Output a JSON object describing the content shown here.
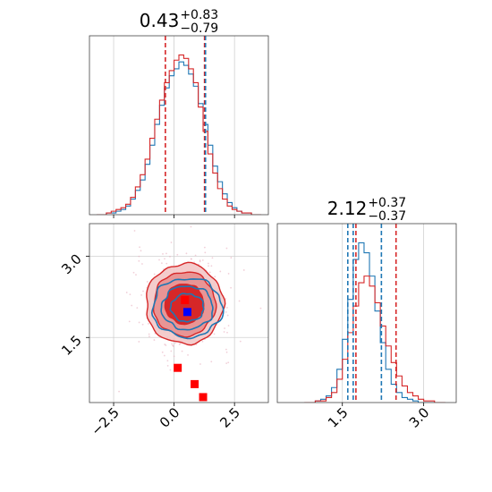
{
  "chart_data": [
    {
      "type": "histogram",
      "panel": "marginal-x",
      "title": {
        "value": "0.43",
        "plus": "+0.83",
        "minus": "−0.79"
      },
      "xlim": [
        -3.5,
        3.9
      ],
      "grid": true,
      "quantile_lines": [
        {
          "color": "#d62728",
          "values": [
            -0.36,
            1.26
          ]
        },
        {
          "color": "#1f77b4",
          "values": [
            1.3
          ]
        }
      ],
      "bins_x": [
        -3.1,
        -2.9,
        -2.7,
        -2.5,
        -2.3,
        -2.1,
        -1.9,
        -1.7,
        -1.5,
        -1.3,
        -1.1,
        -0.9,
        -0.7,
        -0.5,
        -0.3,
        -0.1,
        0.1,
        0.3,
        0.5,
        0.7,
        0.9,
        1.1,
        1.3,
        1.5,
        1.7,
        1.9,
        2.1,
        2.3,
        2.5,
        2.7,
        2.9,
        3.1,
        3.3,
        3.5
      ],
      "series": [
        {
          "color": "#1f77b4",
          "values": [
            0,
            0,
            1,
            1,
            2,
            3,
            5,
            9,
            14,
            20,
            29,
            40,
            52,
            63,
            73,
            80,
            84,
            88,
            86,
            81,
            74,
            64,
            52,
            40,
            28,
            19,
            12,
            7,
            4,
            2,
            1,
            1,
            0,
            0
          ]
        },
        {
          "color": "#d62728",
          "values": [
            0,
            0,
            1,
            2,
            3,
            4,
            6,
            10,
            16,
            23,
            32,
            44,
            55,
            66,
            76,
            83,
            89,
            92,
            90,
            84,
            76,
            62,
            48,
            35,
            24,
            15,
            9,
            5,
            3,
            2,
            1,
            1,
            0,
            0
          ]
        }
      ]
    },
    {
      "type": "contour",
      "panel": "joint",
      "xlim": [
        -3.5,
        3.9
      ],
      "ylim": [
        0.3,
        3.6
      ],
      "grid": true,
      "distributions": [
        {
          "color": "#d62728",
          "center": [
            0.43,
            2.12
          ],
          "sigma": [
            0.8,
            0.37
          ]
        },
        {
          "color": "#1f77b4",
          "center": [
            0.55,
            2.05
          ],
          "sigma": [
            0.85,
            0.32
          ]
        }
      ],
      "markers": [
        {
          "color": "#ff0000",
          "x": 0.45,
          "y": 2.19
        },
        {
          "color": "#ff0000",
          "x": 0.15,
          "y": 0.94
        },
        {
          "color": "#ff0000",
          "x": 0.85,
          "y": 0.64
        },
        {
          "color": "#ff0000",
          "x": 1.2,
          "y": 0.4
        },
        {
          "color": "#0000ff",
          "x": 0.55,
          "y": 1.97
        }
      ]
    },
    {
      "type": "histogram",
      "panel": "marginal-y",
      "title": {
        "value": "2.12",
        "plus": "+0.37",
        "minus": "−0.37"
      },
      "xlim": [
        0.3,
        3.6
      ],
      "grid": true,
      "quantile_lines": [
        {
          "color": "#d62728",
          "values": [
            1.75,
            2.49
          ]
        },
        {
          "color": "#1f77b4",
          "values": [
            1.6,
            1.7,
            2.22
          ]
        }
      ],
      "bins_x": [
        0.85,
        0.95,
        1.05,
        1.15,
        1.25,
        1.35,
        1.45,
        1.55,
        1.65,
        1.75,
        1.85,
        1.95,
        2.05,
        2.15,
        2.25,
        2.35,
        2.45,
        2.55,
        2.65,
        2.75,
        2.85,
        2.95,
        3.05,
        3.15,
        3.25,
        3.35
      ],
      "series": [
        {
          "color": "#1f77b4",
          "values": [
            0,
            0,
            1,
            2,
            4,
            9,
            20,
            38,
            62,
            86,
            96,
            90,
            76,
            55,
            36,
            20,
            11,
            6,
            3,
            2,
            1,
            0,
            0,
            0,
            0,
            0
          ]
        },
        {
          "color": "#d62728",
          "values": [
            0,
            0,
            1,
            1,
            3,
            6,
            14,
            26,
            42,
            58,
            72,
            76,
            70,
            60,
            46,
            34,
            24,
            16,
            10,
            6,
            4,
            2,
            1,
            1,
            0,
            0
          ]
        }
      ]
    }
  ],
  "axes": {
    "x_ticks": [
      {
        "value": -2.5,
        "label": "−2.5"
      },
      {
        "value": 0.0,
        "label": "0.0"
      },
      {
        "value": 2.5,
        "label": "2.5"
      }
    ],
    "y_ticks": [
      {
        "value": 1.5,
        "label": "1.5"
      },
      {
        "value": 3.0,
        "label": "3.0"
      }
    ],
    "y_hist_ticks": [
      {
        "value": 1.5,
        "label": "1.5"
      },
      {
        "value": 3.0,
        "label": "3.0"
      }
    ]
  }
}
